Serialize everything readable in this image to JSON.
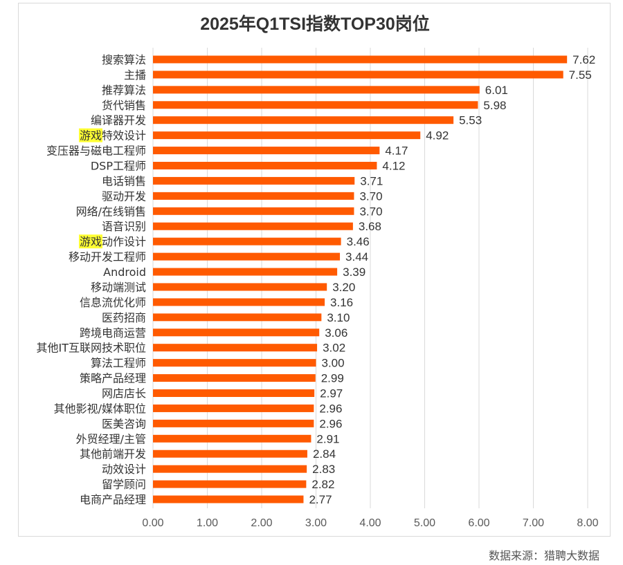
{
  "chart_data": {
    "type": "bar",
    "orientation": "horizontal",
    "title": "2025年Q1TSI指数TOP30岗位",
    "categories": [
      "搜索算法",
      "主播",
      "推荐算法",
      "货代销售",
      "编译器开发",
      "游戏特效设计",
      "变压器与磁电工程师",
      "DSP工程师",
      "电话销售",
      "驱动开发",
      "网络/在线销售",
      "语音识别",
      "游戏动作设计",
      "移动开发工程师",
      "Android",
      "移动端测试",
      "信息流优化师",
      "医药招商",
      "跨境电商运营",
      "其他IT互联网技术职位",
      "算法工程师",
      "策略产品经理",
      "网店店长",
      "其他影视/媒体职位",
      "医美咨询",
      "外贸经理/主管",
      "其他前端开发",
      "动效设计",
      "留学顾问",
      "电商产品经理"
    ],
    "values": [
      7.62,
      7.55,
      6.01,
      5.98,
      5.53,
      4.92,
      4.17,
      4.12,
      3.71,
      3.7,
      3.7,
      3.68,
      3.46,
      3.44,
      3.39,
      3.2,
      3.16,
      3.1,
      3.06,
      3.02,
      3.0,
      2.99,
      2.97,
      2.96,
      2.96,
      2.91,
      2.84,
      2.83,
      2.82,
      2.77
    ],
    "value_labels": [
      "7.62",
      "7.55",
      "6.01",
      "5.98",
      "5.53",
      "4.92",
      "4.17",
      "4.12",
      "3.71",
      "3.70",
      "3.70",
      "3.68",
      "3.46",
      "3.44",
      "3.39",
      "3.20",
      "3.16",
      "3.10",
      "3.06",
      "3.02",
      "3.00",
      "2.99",
      "2.97",
      "2.96",
      "2.96",
      "2.91",
      "2.84",
      "2.83",
      "2.82",
      "2.77"
    ],
    "x_ticks": [
      "0.00",
      "1.00",
      "2.00",
      "3.00",
      "4.00",
      "5.00",
      "6.00",
      "7.00",
      "8.00"
    ],
    "xlim": [
      0,
      8
    ],
    "grid": "vertical",
    "legend": "none",
    "bar_color": "#ff5a00",
    "highlight_text": "游戏",
    "highlight_color": "#ffff33"
  },
  "source": "数据来源：猎聘大数据"
}
